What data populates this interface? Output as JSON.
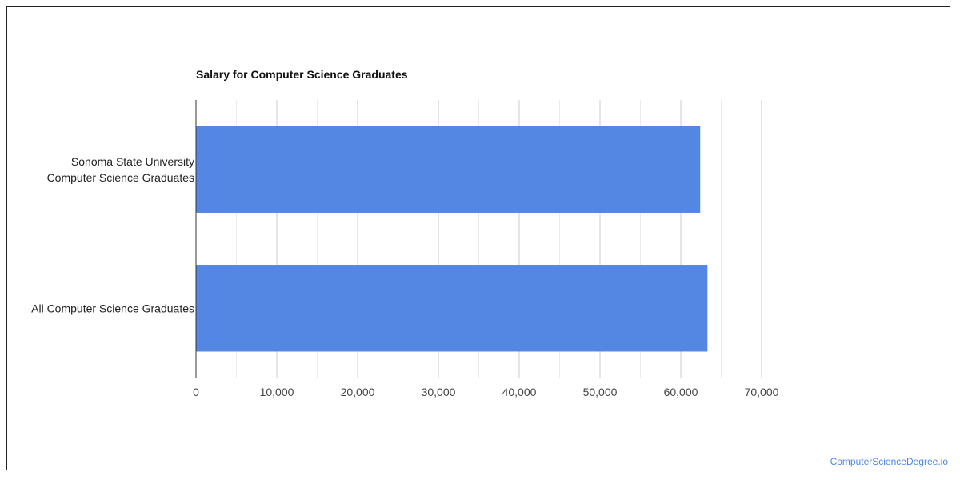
{
  "chart_data": {
    "type": "bar",
    "orientation": "horizontal",
    "title": "Salary for Computer Science Graduates",
    "xlabel": "",
    "ylabel": "",
    "categories": [
      [
        "Sonoma State University",
        "Computer Science Graduates"
      ],
      [
        "All Computer Science Graduates"
      ]
    ],
    "values": [
      62400,
      63300
    ],
    "xlim": [
      0,
      70000
    ],
    "xticks": [
      0,
      10000,
      20000,
      30000,
      40000,
      50000,
      60000,
      70000
    ],
    "xtick_labels": [
      "0",
      "10,000",
      "20,000",
      "30,000",
      "40,000",
      "50,000",
      "60,000",
      "70,000"
    ],
    "grid": true,
    "legend": "none",
    "bar_color": "#5486e3"
  },
  "footer": {
    "credit": "ComputerScienceDegree.io",
    "credit_color": "#4a86e8"
  }
}
